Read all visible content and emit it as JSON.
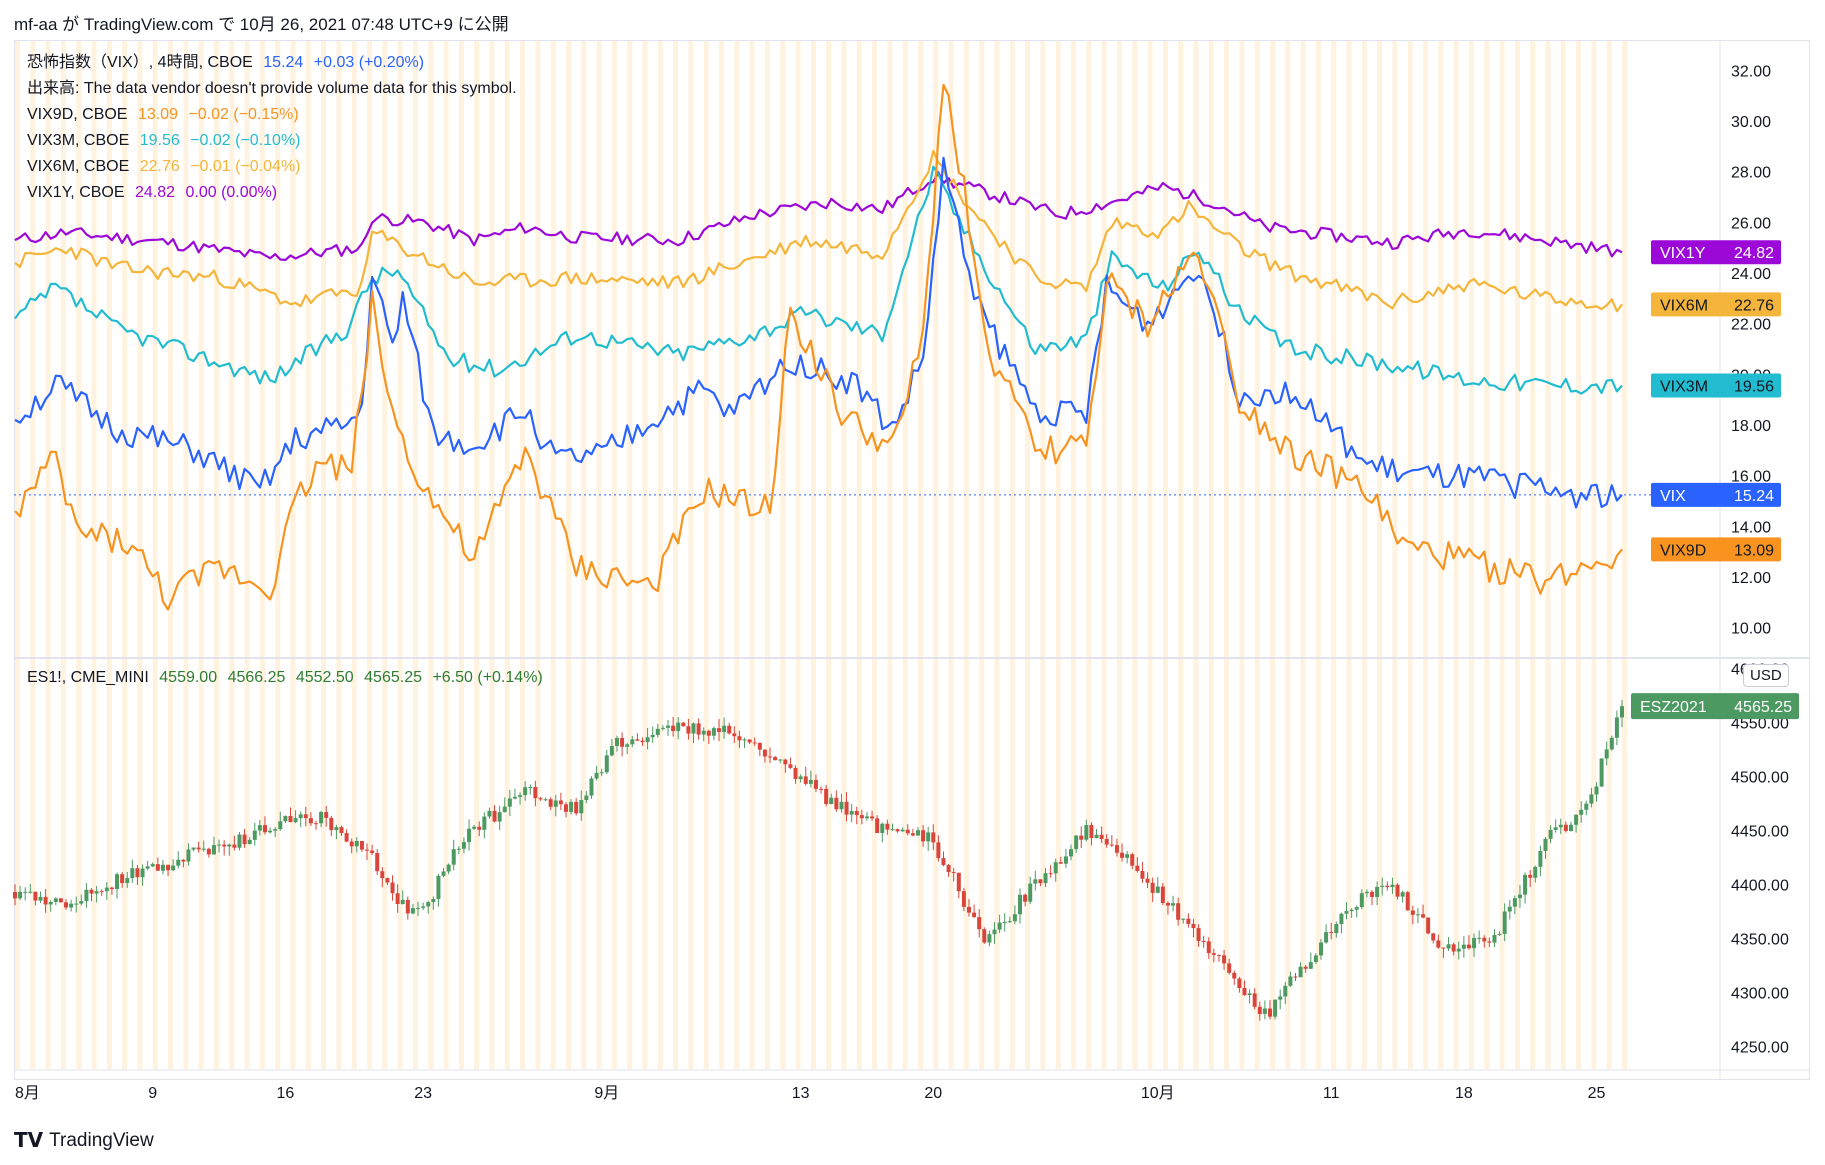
{
  "header": {
    "text": "mf-aa が TradingView.com で 10月 26, 2021 07:48 UTC+9 に公開"
  },
  "footer": {
    "logo_mark": "𝗧𝗩",
    "logo_text": "TradingView"
  },
  "colors": {
    "VIX": "#2962ff",
    "VIX9D": "#f7931e",
    "VIX3M": "#22bcd0",
    "VIX6M": "#f5b43a",
    "VIX1Y": "#9c08d8",
    "up": "#4c9a62",
    "down": "#d9453b",
    "session_band": "#fff3e0"
  },
  "legend": {
    "vix": {
      "name": "恐怖指数（VIX）, 4時間, CBOE",
      "value": "15.24",
      "change": "+0.03 (+0.20%)"
    },
    "volume": {
      "text": "出来高: The data vendor doesn't provide volume data for this symbol."
    },
    "vix9d": {
      "name": "VIX9D, CBOE",
      "value": "13.09",
      "change": "−0.02 (−0.15%)"
    },
    "vix3m": {
      "name": "VIX3M, CBOE",
      "value": "19.56",
      "change": "−0.02 (−0.10%)"
    },
    "vix6m": {
      "name": "VIX6M, CBOE",
      "value": "22.76",
      "change": "−0.01 (−0.04%)"
    },
    "vix1y": {
      "name": "VIX1Y, CBOE",
      "value": "24.82",
      "change": "0.00 (0.00%)"
    },
    "es": {
      "name": "ES1!, CME_MINI",
      "open": "4559.00",
      "high": "4566.25",
      "low": "4552.50",
      "close": "4565.25",
      "change": "+6.50 (+0.14%)"
    }
  },
  "usd_badge": "USD",
  "chart_data": [
    {
      "type": "line",
      "title": "",
      "y_ticks": [
        "10.00",
        "12.00",
        "14.00",
        "16.00",
        "18.00",
        "20.00",
        "22.00",
        "24.00",
        "26.00",
        "28.00",
        "30.00",
        "32.00"
      ],
      "ylim": [
        8.8,
        33.2
      ],
      "x_labels": [
        "8月",
        "9",
        "16",
        "23",
        "9月",
        "13",
        "20",
        "10月",
        "11",
        "18",
        "25"
      ],
      "x_label_index": [
        0,
        27,
        53,
        80,
        116,
        154,
        180,
        224,
        258,
        284,
        310
      ],
      "n_points": 316,
      "price_tags": [
        {
          "name": "VIX1Y",
          "value": "24.82"
        },
        {
          "name": "VIX6M",
          "value": "22.76"
        },
        {
          "name": "VIX3M",
          "value": "19.56"
        },
        {
          "name": "VIX",
          "value": "15.24"
        },
        {
          "name": "VIX9D",
          "value": "13.09"
        }
      ],
      "series": [
        {
          "name": "VIX1Y",
          "anchors": [
            [
              0,
              25.3
            ],
            [
              10,
              25.6
            ],
            [
              30,
              25.2
            ],
            [
              50,
              24.6
            ],
            [
              68,
              25.0
            ],
            [
              70,
              26.2
            ],
            [
              80,
              26.0
            ],
            [
              90,
              25.3
            ],
            [
              100,
              25.8
            ],
            [
              110,
              25.4
            ],
            [
              130,
              25.3
            ],
            [
              145,
              26.3
            ],
            [
              160,
              26.8
            ],
            [
              170,
              26.5
            ],
            [
              180,
              27.8
            ],
            [
              190,
              27.2
            ],
            [
              205,
              26.3
            ],
            [
              215,
              26.8
            ],
            [
              225,
              27.4
            ],
            [
              235,
              26.8
            ],
            [
              245,
              25.8
            ],
            [
              270,
              25.2
            ],
            [
              285,
              25.7
            ],
            [
              300,
              25.3
            ],
            [
              315,
              24.82
            ]
          ]
        },
        {
          "name": "VIX6M",
          "anchors": [
            [
              0,
              24.4
            ],
            [
              10,
              25.0
            ],
            [
              20,
              24.2
            ],
            [
              40,
              23.8
            ],
            [
              55,
              22.8
            ],
            [
              68,
              23.4
            ],
            [
              70,
              25.6
            ],
            [
              80,
              24.6
            ],
            [
              90,
              23.6
            ],
            [
              110,
              23.8
            ],
            [
              130,
              23.6
            ],
            [
              145,
              24.6
            ],
            [
              155,
              25.3
            ],
            [
              170,
              24.8
            ],
            [
              180,
              28.6
            ],
            [
              188,
              26.4
            ],
            [
              200,
              23.8
            ],
            [
              210,
              23.4
            ],
            [
              215,
              26.0
            ],
            [
              225,
              25.6
            ],
            [
              230,
              26.6
            ],
            [
              240,
              25.0
            ],
            [
              250,
              24.0
            ],
            [
              270,
              22.8
            ],
            [
              285,
              23.6
            ],
            [
              300,
              23.0
            ],
            [
              315,
              22.76
            ]
          ]
        },
        {
          "name": "VIX3M",
          "anchors": [
            [
              0,
              22.2
            ],
            [
              8,
              23.4
            ],
            [
              20,
              21.8
            ],
            [
              35,
              20.8
            ],
            [
              50,
              19.8
            ],
            [
              65,
              21.8
            ],
            [
              70,
              23.8
            ],
            [
              75,
              24.1
            ],
            [
              85,
              20.6
            ],
            [
              95,
              20.2
            ],
            [
              110,
              21.6
            ],
            [
              130,
              20.8
            ],
            [
              145,
              21.6
            ],
            [
              155,
              22.4
            ],
            [
              170,
              21.6
            ],
            [
              180,
              28.0
            ],
            [
              188,
              25.0
            ],
            [
              200,
              21.0
            ],
            [
              210,
              21.4
            ],
            [
              215,
              24.6
            ],
            [
              225,
              23.4
            ],
            [
              232,
              25.0
            ],
            [
              240,
              22.4
            ],
            [
              250,
              21.0
            ],
            [
              270,
              20.4
            ],
            [
              285,
              19.8
            ],
            [
              300,
              19.6
            ],
            [
              315,
              19.56
            ]
          ]
        },
        {
          "name": "VIX",
          "anchors": [
            [
              0,
              18.2
            ],
            [
              8,
              19.6
            ],
            [
              20,
              17.8
            ],
            [
              35,
              17.0
            ],
            [
              48,
              15.4
            ],
            [
              55,
              17.4
            ],
            [
              65,
              18.0
            ],
            [
              68,
              18.6
            ],
            [
              70,
              24.0
            ],
            [
              74,
              21.0
            ],
            [
              76,
              23.0
            ],
            [
              82,
              17.6
            ],
            [
              90,
              17.2
            ],
            [
              100,
              18.6
            ],
            [
              106,
              16.6
            ],
            [
              115,
              16.8
            ],
            [
              125,
              18.2
            ],
            [
              135,
              19.4
            ],
            [
              140,
              18.4
            ],
            [
              152,
              20.6
            ],
            [
              165,
              19.6
            ],
            [
              172,
              17.8
            ],
            [
              178,
              20.6
            ],
            [
              182,
              28.2
            ],
            [
              186,
              24.8
            ],
            [
              190,
              22.2
            ],
            [
              200,
              18.6
            ],
            [
              210,
              18.4
            ],
            [
              214,
              23.4
            ],
            [
              222,
              22.0
            ],
            [
              232,
              24.4
            ],
            [
              240,
              19.2
            ],
            [
              250,
              19.4
            ],
            [
              265,
              16.4
            ],
            [
              275,
              16.0
            ],
            [
              290,
              15.8
            ],
            [
              305,
              15.3
            ],
            [
              315,
              15.24
            ]
          ]
        },
        {
          "name": "VIX9D",
          "anchors": [
            [
              0,
              14.6
            ],
            [
              8,
              16.6
            ],
            [
              12,
              13.8
            ],
            [
              22,
              13.4
            ],
            [
              30,
              11.2
            ],
            [
              40,
              12.4
            ],
            [
              50,
              11.6
            ],
            [
              55,
              15.0
            ],
            [
              60,
              16.6
            ],
            [
              66,
              16.2
            ],
            [
              70,
              22.8
            ],
            [
              74,
              18.4
            ],
            [
              80,
              15.6
            ],
            [
              90,
              12.6
            ],
            [
              100,
              17.0
            ],
            [
              110,
              12.4
            ],
            [
              125,
              11.6
            ],
            [
              135,
              15.4
            ],
            [
              148,
              14.6
            ],
            [
              152,
              22.6
            ],
            [
              162,
              18.4
            ],
            [
              172,
              17.0
            ],
            [
              178,
              21.4
            ],
            [
              182,
              31.8
            ],
            [
              186,
              27.4
            ],
            [
              190,
              21.4
            ],
            [
              200,
              17.0
            ],
            [
              210,
              17.2
            ],
            [
              214,
              23.6
            ],
            [
              222,
              22.0
            ],
            [
              232,
              25.0
            ],
            [
              240,
              19.0
            ],
            [
              250,
              17.0
            ],
            [
              265,
              15.4
            ],
            [
              272,
              13.2
            ],
            [
              285,
              12.6
            ],
            [
              300,
              11.8
            ],
            [
              315,
              13.09
            ]
          ]
        }
      ]
    },
    {
      "type": "candlestick",
      "title": "",
      "symbol": "ESZ2021",
      "last": "4565.25",
      "y_ticks": [
        "4250.00",
        "4300.00",
        "4350.00",
        "4400.00",
        "4450.00",
        "4500.00",
        "4550.00",
        "4600.00"
      ],
      "ylim": [
        4228,
        4608
      ],
      "n_candles": 316,
      "anchors": [
        [
          0,
          4393
        ],
        [
          10,
          4380
        ],
        [
          20,
          4405
        ],
        [
          40,
          4435
        ],
        [
          55,
          4460
        ],
        [
          60,
          4462
        ],
        [
          70,
          4425
        ],
        [
          75,
          4380
        ],
        [
          80,
          4375
        ],
        [
          88,
          4445
        ],
        [
          100,
          4485
        ],
        [
          110,
          4470
        ],
        [
          118,
          4530
        ],
        [
          130,
          4545
        ],
        [
          140,
          4540
        ],
        [
          150,
          4510
        ],
        [
          165,
          4460
        ],
        [
          180,
          4440
        ],
        [
          185,
          4395
        ],
        [
          190,
          4345
        ],
        [
          200,
          4400
        ],
        [
          210,
          4450
        ],
        [
          215,
          4440
        ],
        [
          222,
          4405
        ],
        [
          230,
          4358
        ],
        [
          238,
          4320
        ],
        [
          245,
          4278
        ],
        [
          252,
          4320
        ],
        [
          262,
          4380
        ],
        [
          270,
          4400
        ],
        [
          280,
          4340
        ],
        [
          290,
          4350
        ],
        [
          300,
          4440
        ],
        [
          308,
          4470
        ],
        [
          315,
          4565.25
        ]
      ]
    }
  ]
}
